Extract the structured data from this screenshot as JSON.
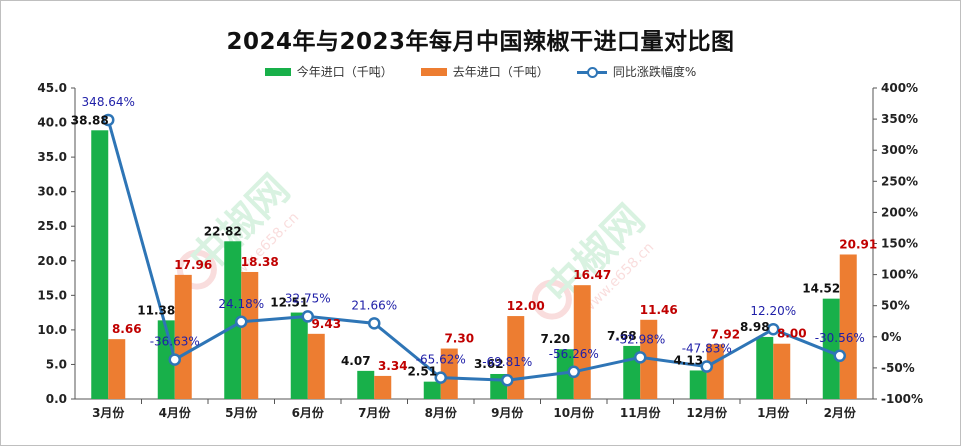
{
  "title": "2024年与2023年每月中国辣椒干进口量对比图",
  "legend": {
    "this_year": "今年进口（千吨）",
    "last_year": "去年进口（千吨）",
    "change": "同比涨跌幅度%"
  },
  "colors": {
    "this_year": "#18b04a",
    "last_year": "#ed7d31",
    "change": "#2e75b6",
    "change_label": "#1f1fa8",
    "last_year_label": "#c00000"
  },
  "chart_data": {
    "type": "bar",
    "title": "2024年与2023年每月中国辣椒干进口量对比图",
    "categories": [
      "3月份",
      "4月份",
      "5月份",
      "6月份",
      "7月份",
      "8月份",
      "9月份",
      "10月份",
      "11月份",
      "12月份",
      "1月份",
      "2月份"
    ],
    "series": [
      {
        "name": "今年进口（千吨）",
        "type": "bar",
        "axis": "left",
        "values": [
          38.88,
          11.38,
          22.82,
          12.51,
          4.07,
          2.51,
          3.62,
          7.2,
          7.68,
          4.13,
          8.98,
          14.52
        ],
        "labels": [
          "38.88",
          "11.38",
          "22.82",
          "12.51",
          "4.07",
          "2.51",
          "3.62",
          "7.20",
          "7.68",
          "4.13",
          "8.98",
          "14.52"
        ]
      },
      {
        "name": "去年进口（千吨）",
        "type": "bar",
        "axis": "left",
        "values": [
          8.66,
          17.96,
          18.38,
          9.43,
          3.34,
          7.3,
          12.0,
          16.47,
          11.46,
          7.92,
          8.0,
          20.91
        ],
        "labels": [
          "8.66",
          "17.96",
          "18.38",
          "9.43",
          "3.34",
          "7.30",
          "12.00",
          "16.47",
          "11.46",
          "7.92",
          "8.00",
          "20.91"
        ]
      },
      {
        "name": "同比涨跌幅度%",
        "type": "line",
        "axis": "right",
        "values": [
          348.64,
          -36.63,
          24.18,
          32.75,
          21.66,
          -65.62,
          -69.81,
          -56.26,
          -32.98,
          -47.83,
          12.2,
          -30.56
        ],
        "labels": [
          "348.64%",
          "-36.63%",
          "24.18%",
          "32.75%",
          "21.66%",
          "-65.62%",
          "-69.81%",
          "-56.26%",
          "-32.98%",
          "-47.83%",
          "12.20%",
          "-30.56%"
        ]
      }
    ],
    "y_left": {
      "min": 0,
      "max": 45,
      "step": 5,
      "tick_labels": [
        "0.0",
        "5.0",
        "10.0",
        "15.0",
        "20.0",
        "25.0",
        "30.0",
        "35.0",
        "40.0",
        "45.0"
      ]
    },
    "y_right": {
      "min": -100,
      "max": 400,
      "step": 50,
      "tick_labels": [
        "-100%",
        "-50%",
        "0%",
        "50%",
        "100%",
        "150%",
        "200%",
        "250%",
        "300%",
        "350%",
        "400%"
      ]
    },
    "legend_position": "top",
    "grid": false
  },
  "watermark": {
    "brand": "中椒网",
    "site": "www.e658.cn"
  }
}
